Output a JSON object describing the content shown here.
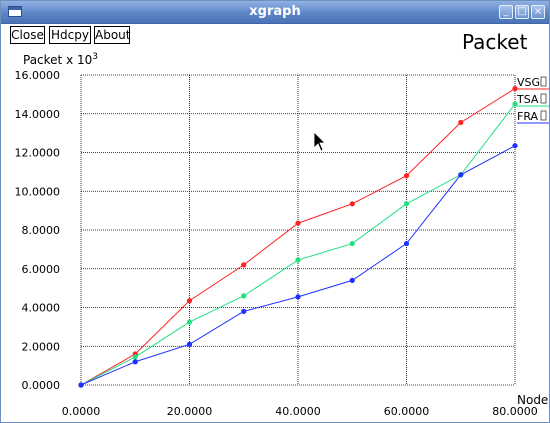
{
  "window": {
    "title": "xgraph",
    "controls": [
      "_",
      "□",
      "×"
    ]
  },
  "toolbar": {
    "close_label": "Close",
    "hdcpy_label": "Hdcpy",
    "about_label": "About"
  },
  "plot": {
    "title": "Packet"
  },
  "colors": {
    "titlebar": "#5e86c7",
    "grid": "#000000",
    "VSG": "#ff2020",
    "TSA": "#20e080",
    "FRA": "#2030ff"
  },
  "chart_data": {
    "type": "line",
    "title": "Packet",
    "ylabel": "Packet x 10",
    "ylabel_superscript": "3",
    "xlabel": "Nodes",
    "xlim": [
      0,
      80
    ],
    "ylim": [
      0,
      16
    ],
    "x_ticks": [
      0,
      20,
      40,
      60,
      80
    ],
    "x_tick_labels": [
      "0.0000",
      "20.0000",
      "40.0000",
      "60.0000",
      "80.0000"
    ],
    "y_ticks": [
      0,
      2,
      4,
      6,
      8,
      10,
      12,
      14,
      16
    ],
    "y_tick_labels": [
      "0.0000",
      "2.0000",
      "4.0000",
      "6.0000",
      "8.0000",
      "10.0000",
      "12.0000",
      "14.0000",
      "16.0000"
    ],
    "grid": true,
    "legend": "top-right",
    "x": [
      0,
      10,
      20,
      30,
      40,
      50,
      60,
      70,
      80
    ],
    "series": [
      {
        "name": "VSG",
        "color": "#ff2020",
        "values": [
          0,
          1.6,
          4.35,
          6.2,
          8.35,
          9.35,
          10.8,
          13.55,
          15.3
        ]
      },
      {
        "name": "TSA",
        "color": "#20e080",
        "values": [
          0,
          1.45,
          3.25,
          4.6,
          6.45,
          7.3,
          9.35,
          10.85,
          14.5
        ]
      },
      {
        "name": "FRA",
        "color": "#2030ff",
        "values": [
          0,
          1.2,
          2.1,
          3.8,
          4.55,
          5.4,
          7.3,
          10.85,
          12.35
        ]
      }
    ]
  }
}
